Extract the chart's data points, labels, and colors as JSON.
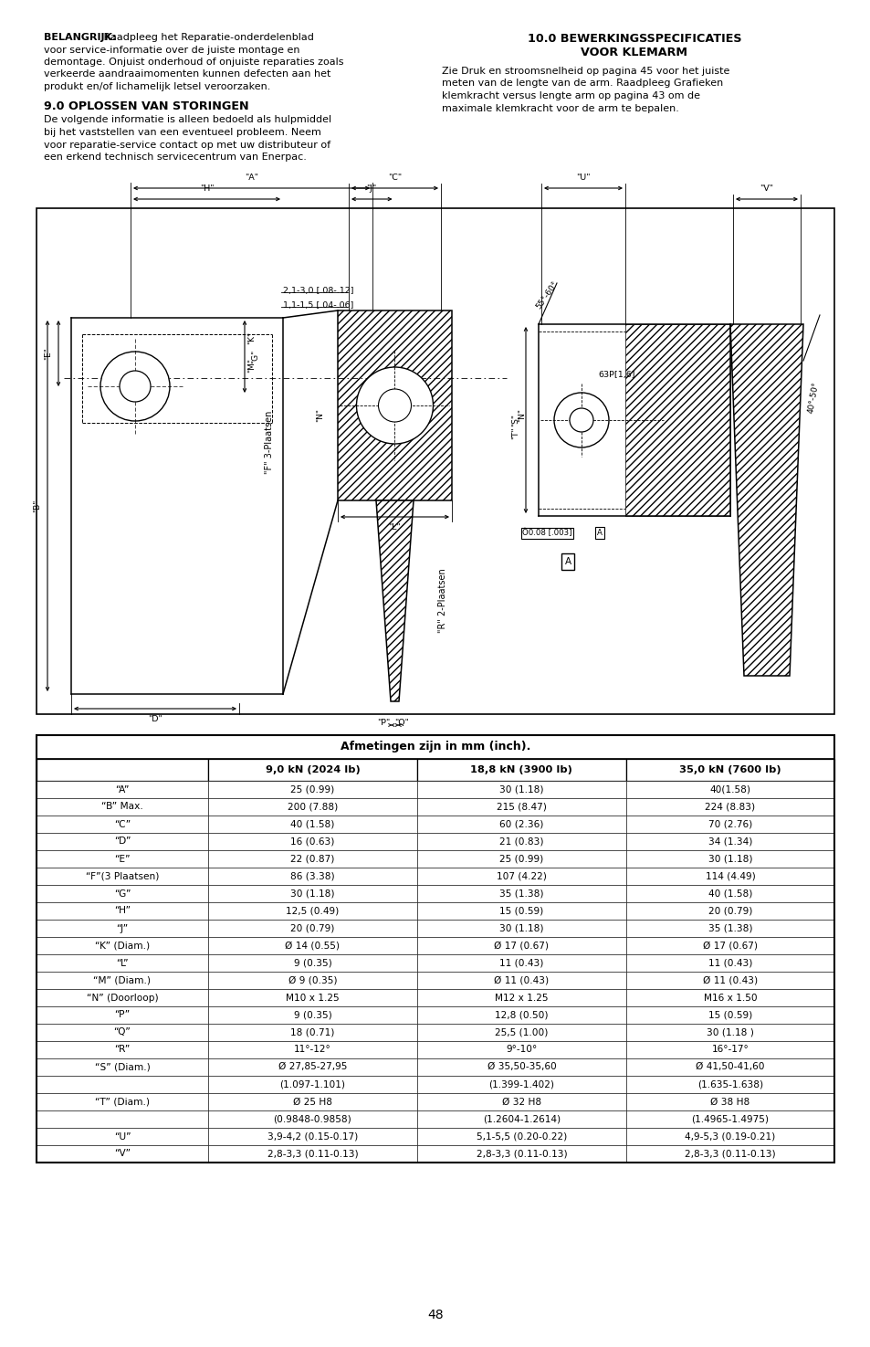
{
  "page_number": "48",
  "left_col_para1": [
    [
      "BELANGRIJK:",
      " Raadpleeg het Reparatie-onderdelenblad"
    ],
    [
      "",
      "voor service-informatie over de juiste montage en"
    ],
    [
      "",
      "demontage. Onjuist onderhoud of onjuiste reparaties zoals"
    ],
    [
      "",
      "verkeerde aandraaimomenten kunnen defecten aan het"
    ],
    [
      "",
      "produkt en/of lichamelijk letsel veroorzaken."
    ]
  ],
  "left_col_sec_title": "9.0 OPLOSSEN VAN STORINGEN",
  "left_col_sec_text": [
    "De volgende informatie is alleen bedoeld als hulpmiddel",
    "bij het vaststellen van een eventueel probleem. Neem",
    "voor reparatie-service contact op met uw distributeur of",
    "een erkend technisch servicecentrum van Enerpac."
  ],
  "right_col_title1": "10.0 BEWERKINGSSPECIFICATIES",
  "right_col_title2": "VOOR KLEMARM",
  "right_col_text": [
    "Zie Druk en stroomsnelheid op pagina 45 voor het juiste",
    "meten van de lengte van de arm. Raadpleeg Grafieken",
    "klemkracht versus lengte arm op pagina 43 om de",
    "maximale klemkracht voor de arm te bepalen."
  ],
  "table_title": "Afmetingen zijn in mm (inch).",
  "table_col_headers": [
    "",
    "9,0 kN (2024 lb)",
    "18,8 kN (3900 lb)",
    "35,0 kN (7600 lb)"
  ],
  "table_rows": [
    [
      "“A”",
      "25 (0.99)",
      "30 (1.18)",
      "40(1.58)"
    ],
    [
      "“B” Max.",
      "200 (7.88)",
      "215 (8.47)",
      "224 (8.83)"
    ],
    [
      "“C”",
      "40 (1.58)",
      "60 (2.36)",
      "70 (2.76)"
    ],
    [
      "“D”",
      "16 (0.63)",
      "21 (0.83)",
      "34 (1.34)"
    ],
    [
      "“E”",
      "22 (0.87)",
      "25 (0.99)",
      "30 (1.18)"
    ],
    [
      "“F”(3 Plaatsen)",
      "86 (3.38)",
      "107 (4.22)",
      "114 (4.49)"
    ],
    [
      "“G”",
      "30 (1.18)",
      "35 (1.38)",
      "40 (1.58)"
    ],
    [
      "“H”",
      "12,5 (0.49)",
      "15 (0.59)",
      "20 (0.79)"
    ],
    [
      "“J”",
      "20 (0.79)",
      "30 (1.18)",
      "35 (1.38)"
    ],
    [
      "“K” (Diam.)",
      "Ø 14 (0.55)",
      "Ø 17 (0.67)",
      "Ø 17 (0.67)"
    ],
    [
      "“L”",
      "9 (0.35)",
      "11 (0.43)",
      "11 (0.43)"
    ],
    [
      "“M” (Diam.)",
      "Ø 9 (0.35)",
      "Ø 11 (0.43)",
      "Ø 11 (0.43)"
    ],
    [
      "“N” (Doorloop)",
      "M10 x 1.25",
      "M12 x 1.25",
      "M16 x 1.50"
    ],
    [
      "“P”",
      "9 (0.35)",
      "12,8 (0.50)",
      "15 (0.59)"
    ],
    [
      "“Q”",
      "18 (0.71)",
      "25,5 (1.00)",
      "30 (1.18 )"
    ],
    [
      "“R”",
      "11°-12°",
      "9°-10°",
      "16°-17°"
    ],
    [
      "“S” (Diam.)",
      "Ø 27,85-27,95",
      "Ø 35,50-35,60",
      "Ø 41,50-41,60"
    ],
    [
      "",
      "(1.097-1.101)",
      "(1.399-1.402)",
      "(1.635-1.638)"
    ],
    [
      "“T” (Diam.)",
      "Ø 25 H8",
      "Ø 32 H8",
      "Ø 38 H8"
    ],
    [
      "",
      "(0.9848-0.9858)",
      "(1.2604-1.2614)",
      "(1.4965-1.4975)"
    ],
    [
      "“U”",
      "3,9-4,2 (0.15-0.17)",
      "5,1-5,5 (0.20-0.22)",
      "4,9-5,3 (0.19-0.21)"
    ],
    [
      "“V”",
      "2,8-3,3 (0.11-0.13)",
      "2,8-3,3 (0.11-0.13)",
      "2,8-3,3 (0.11-0.13)"
    ]
  ],
  "bg_color": "#ffffff",
  "text_color": "#000000"
}
